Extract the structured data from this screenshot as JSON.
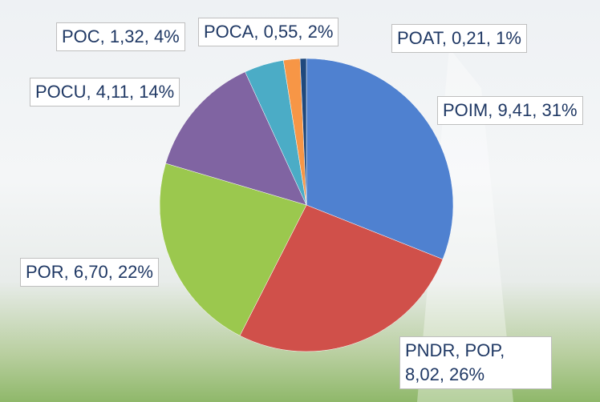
{
  "chart_data": {
    "type": "pie",
    "values": [
      9.41,
      8.02,
      6.7,
      4.11,
      1.32,
      0.55,
      0.21
    ],
    "value_labels": [
      "POIM, 9,41, 31%",
      "PNDR, POP, 8,02, 26%",
      "POR, 6,70, 22%",
      "POCU, 4,11, 14%",
      "POC, 1,32, 4%",
      "POCA, 0,55, 2%",
      "POAT, 0,21, 1%"
    ],
    "colors": [
      "#4f81d0",
      "#d0504a",
      "#9bc84e",
      "#8064a2",
      "#4bacc6",
      "#f79646",
      "#1f497d"
    ]
  }
}
